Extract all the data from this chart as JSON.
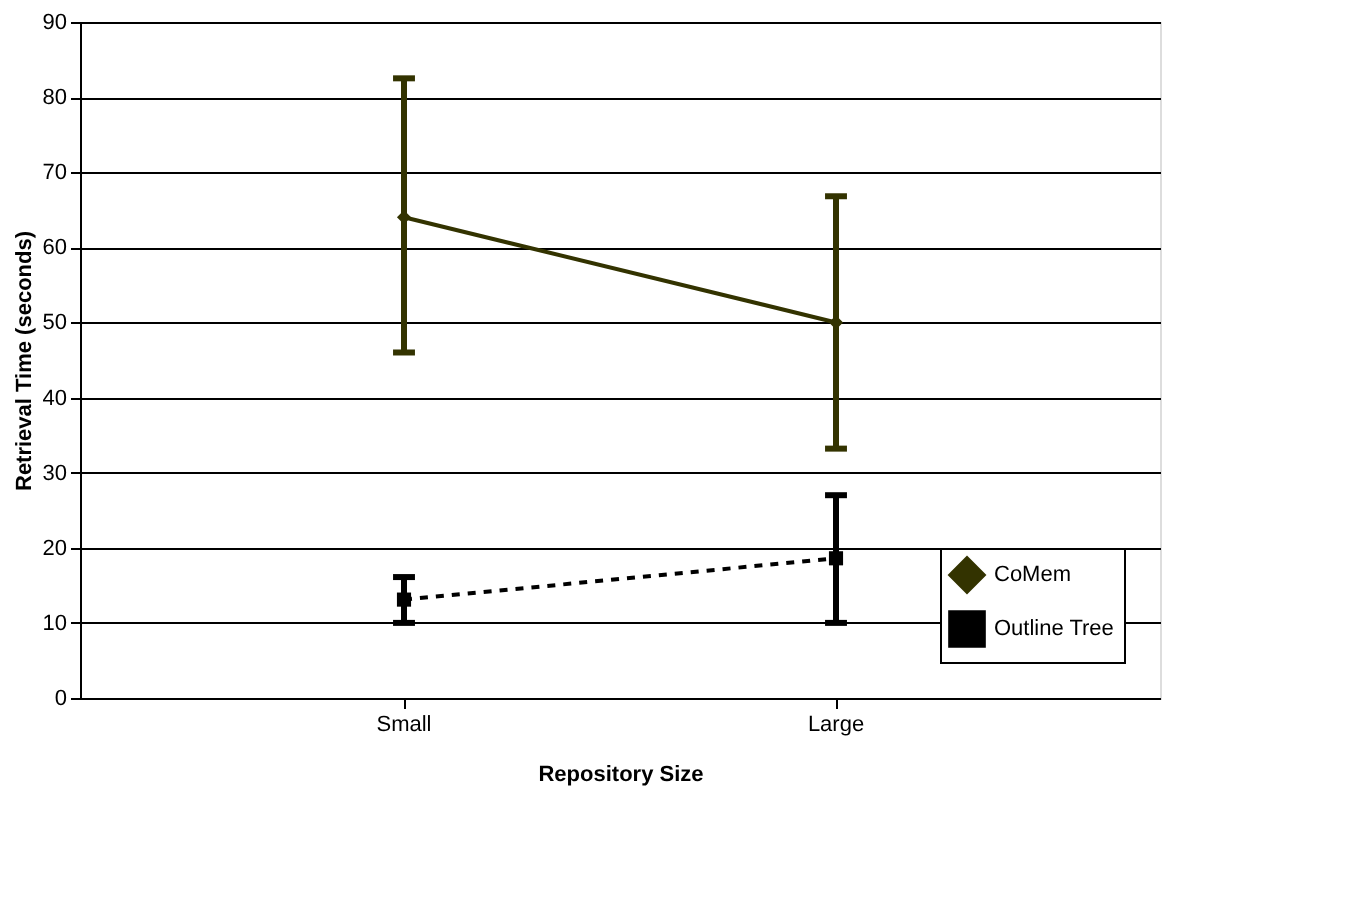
{
  "chart_data": {
    "type": "line",
    "xlabel": "Repository Size",
    "ylabel": "Retrieval Time (seconds)",
    "categories": [
      "Small",
      "Large"
    ],
    "series": [
      {
        "name": "CoMem",
        "color": "#333300",
        "values": [
          64,
          50
        ],
        "errors": [
          [
            46,
            82.5
          ],
          [
            33.2,
            66.8
          ]
        ],
        "marker": "diamond",
        "line_style": "solid"
      },
      {
        "name": "Outline Tree",
        "color": "#000000",
        "values": [
          13.1,
          18.6
        ],
        "errors": [
          [
            10,
            16.1
          ],
          [
            10,
            27
          ]
        ],
        "marker": "square",
        "line_style": "dashed"
      }
    ],
    "ylim": [
      0,
      90
    ],
    "yticks": [
      0,
      10,
      20,
      30,
      40,
      50,
      60,
      70,
      80,
      90
    ],
    "grid": "y",
    "legend": "bottom right"
  }
}
